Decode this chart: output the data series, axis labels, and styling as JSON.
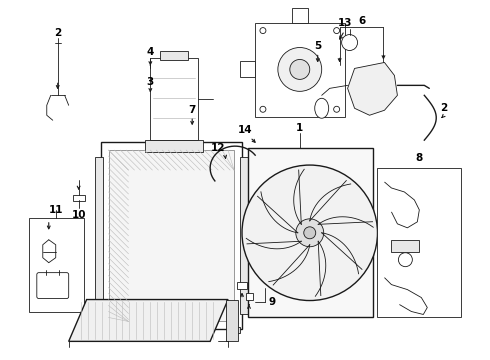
{
  "bg_color": "#ffffff",
  "line_color": "#1a1a1a",
  "label_color": "#000000",
  "fig_width": 4.9,
  "fig_height": 3.6,
  "dpi": 100,
  "label_fontsize": 7.5,
  "arrow_lw": 0.8
}
